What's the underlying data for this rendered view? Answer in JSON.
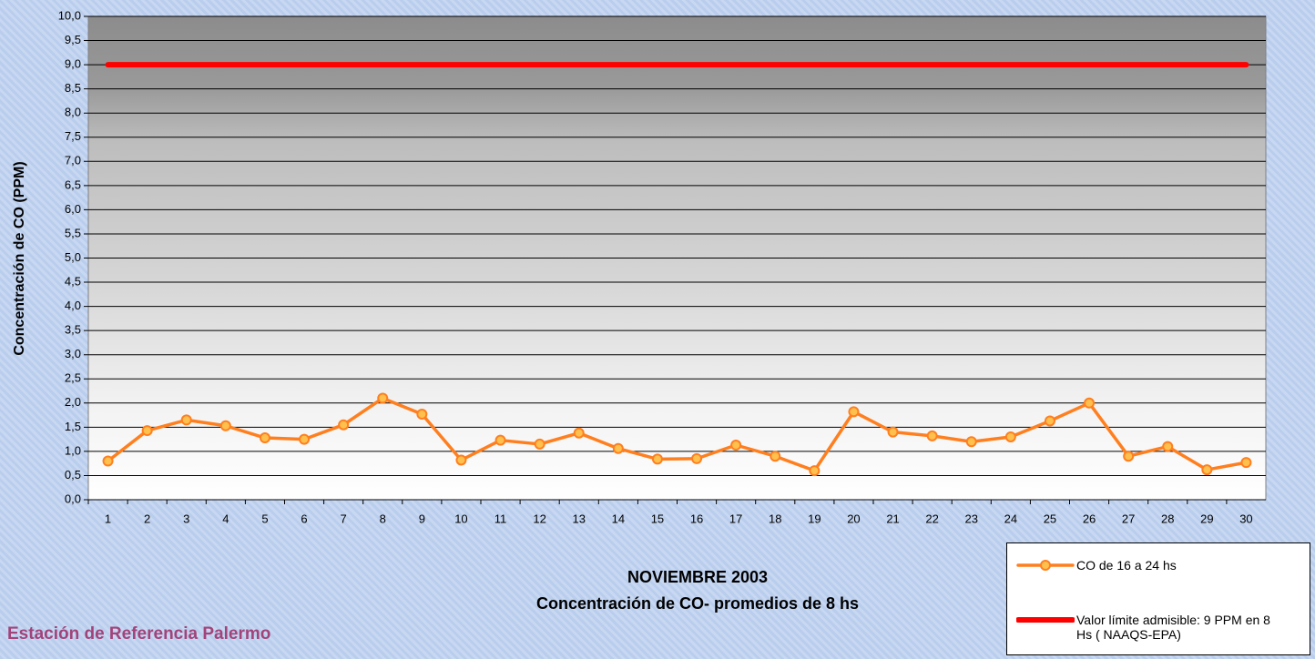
{
  "chart_data": {
    "type": "line",
    "title": "NOVIEMBRE 2003",
    "subtitle": "Concentración de CO- promedios de 8 hs",
    "annotation": "Estación de Referencia Palermo",
    "y_label": "Concentración de CO (PPM)",
    "categories": [
      "1",
      "2",
      "3",
      "4",
      "5",
      "6",
      "7",
      "8",
      "9",
      "10",
      "11",
      "12",
      "13",
      "14",
      "15",
      "16",
      "17",
      "18",
      "19",
      "20",
      "21",
      "22",
      "23",
      "24",
      "25",
      "26",
      "27",
      "28",
      "29",
      "30"
    ],
    "series": [
      {
        "name": "CO de 16 a 24 hs",
        "color": "#ff7f1f",
        "marker": true,
        "values": [
          0.8,
          1.43,
          1.65,
          1.53,
          1.28,
          1.25,
          1.55,
          2.1,
          1.77,
          0.82,
          1.23,
          1.15,
          1.38,
          1.06,
          0.84,
          0.85,
          1.13,
          0.9,
          0.6,
          1.82,
          1.4,
          1.32,
          1.2,
          1.3,
          1.63,
          2.0,
          0.9,
          1.1,
          0.62,
          0.77
        ]
      },
      {
        "name": "Valor límite admisible: 9 PPM en 8 Hs ( NAAQS-EPA)",
        "color": "#ff0000",
        "marker": false,
        "values": [
          9,
          9,
          9,
          9,
          9,
          9,
          9,
          9,
          9,
          9,
          9,
          9,
          9,
          9,
          9,
          9,
          9,
          9,
          9,
          9,
          9,
          9,
          9,
          9,
          9,
          9,
          9,
          9,
          9,
          9
        ]
      }
    ],
    "ylim": [
      0,
      10
    ],
    "yticks": [
      {
        "value": 0,
        "label": "0,0"
      },
      {
        "value": 0.5,
        "label": "0,5"
      },
      {
        "value": 1,
        "label": "1,0"
      },
      {
        "value": 1.5,
        "label": "1,5"
      },
      {
        "value": 2,
        "label": "2,0"
      },
      {
        "value": 2.5,
        "label": "2,5"
      },
      {
        "value": 3,
        "label": "3,0"
      },
      {
        "value": 3.5,
        "label": "3,5"
      },
      {
        "value": 4,
        "label": "4,0"
      },
      {
        "value": 4.5,
        "label": "4,5"
      },
      {
        "value": 5,
        "label": "5,0"
      },
      {
        "value": 5.5,
        "label": "5,5"
      },
      {
        "value": 6,
        "label": "6,0"
      },
      {
        "value": 6.5,
        "label": "6,5"
      },
      {
        "value": 7,
        "label": "7,0"
      },
      {
        "value": 7.5,
        "label": "7,5"
      },
      {
        "value": 8,
        "label": "8,0"
      },
      {
        "value": 8.5,
        "label": "8,5"
      },
      {
        "value": 9,
        "label": "9,0"
      },
      {
        "value": 9.5,
        "label": "9,5"
      },
      {
        "value": 10,
        "label": "10,0"
      }
    ],
    "grid": true,
    "legend": "bottom-right"
  }
}
